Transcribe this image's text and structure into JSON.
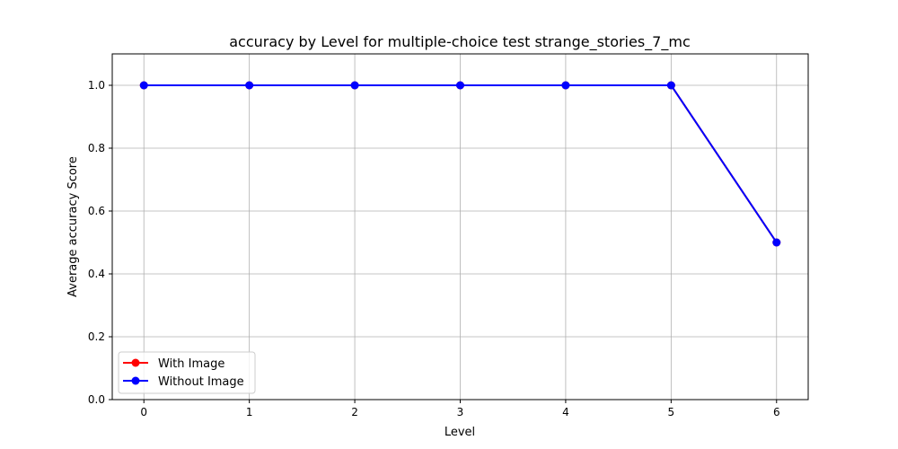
{
  "chart_data": {
    "type": "line",
    "title": "accuracy by Level for multiple-choice test strange_stories_7_mc",
    "xlabel": "Level",
    "ylabel": "Average accuracy Score",
    "x": [
      0,
      1,
      2,
      3,
      4,
      5,
      6
    ],
    "x_ticks": [
      "0",
      "1",
      "2",
      "3",
      "4",
      "5",
      "6"
    ],
    "y_ticks": [
      "0.0",
      "0.2",
      "0.4",
      "0.6",
      "0.8",
      "1.0"
    ],
    "xlim": [
      -0.3,
      6.3
    ],
    "ylim": [
      0.0,
      1.1
    ],
    "grid": true,
    "legend_position": "lower-left",
    "series": [
      {
        "name": "With Image",
        "color": "#ff0000",
        "marker": "circle",
        "values": [
          1.0,
          1.0,
          1.0,
          1.0,
          1.0,
          1.0,
          0.5
        ]
      },
      {
        "name": "Without Image",
        "color": "#0000ff",
        "marker": "circle",
        "values": [
          1.0,
          1.0,
          1.0,
          1.0,
          1.0,
          1.0,
          0.5
        ]
      }
    ]
  }
}
